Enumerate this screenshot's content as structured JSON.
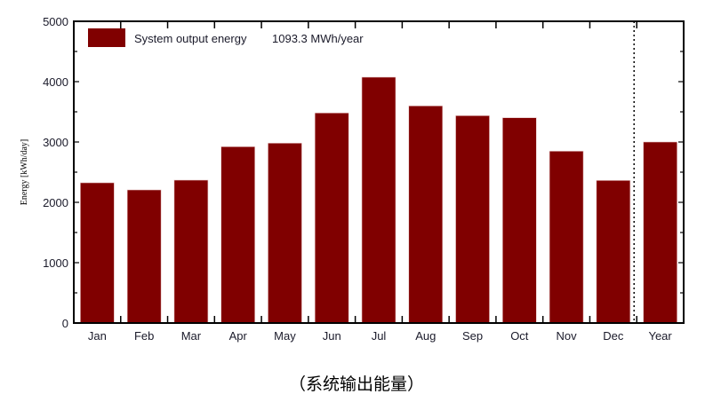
{
  "chart_data": {
    "type": "bar",
    "title": "",
    "xlabel": "",
    "ylabel": "Energy  [kWh/day]",
    "ylim": [
      0,
      5000
    ],
    "yticks": [
      0,
      1000,
      2000,
      3000,
      4000,
      5000
    ],
    "categories": [
      "Jan",
      "Feb",
      "Mar",
      "Apr",
      "May",
      "Jun",
      "Jul",
      "Aug",
      "Sep",
      "Oct",
      "Nov",
      "Dec",
      "Year"
    ],
    "series": [
      {
        "name": "System output energy",
        "values": [
          2324,
          2206,
          2368,
          2922,
          2981,
          3481,
          4074,
          3598,
          3436,
          3402,
          2848,
          2363,
          3000
        ]
      }
    ],
    "legend": {
      "label": "System output energy",
      "value": "1093.3 MWh/year",
      "placement": "top-left"
    },
    "bar_color": "#800000",
    "grid": false
  },
  "caption": "（系统输出能量）"
}
